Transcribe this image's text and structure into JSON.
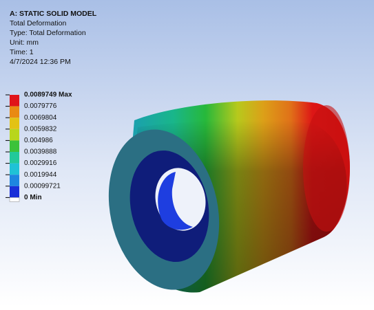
{
  "header": {
    "title": "A: STATIC SOLID MODEL",
    "lines": [
      "Total Deformation",
      "Type: Total Deformation",
      "Unit: mm",
      "Time: 1",
      "4/7/2024 12:36 PM"
    ]
  },
  "legend": {
    "labels": [
      "0.0089749 Max",
      "0.0079776",
      "0.0069804",
      "0.0059832",
      "0.004986",
      "0.0039888",
      "0.0029916",
      "0.0019944",
      "0.00099721",
      "0 Min"
    ],
    "colors": [
      "#e0141a",
      "#e98a12",
      "#e3c214",
      "#b8d61c",
      "#3cc23a",
      "#22c99a",
      "#1fc2d6",
      "#1e86e0",
      "#1a2fd8"
    ]
  }
}
